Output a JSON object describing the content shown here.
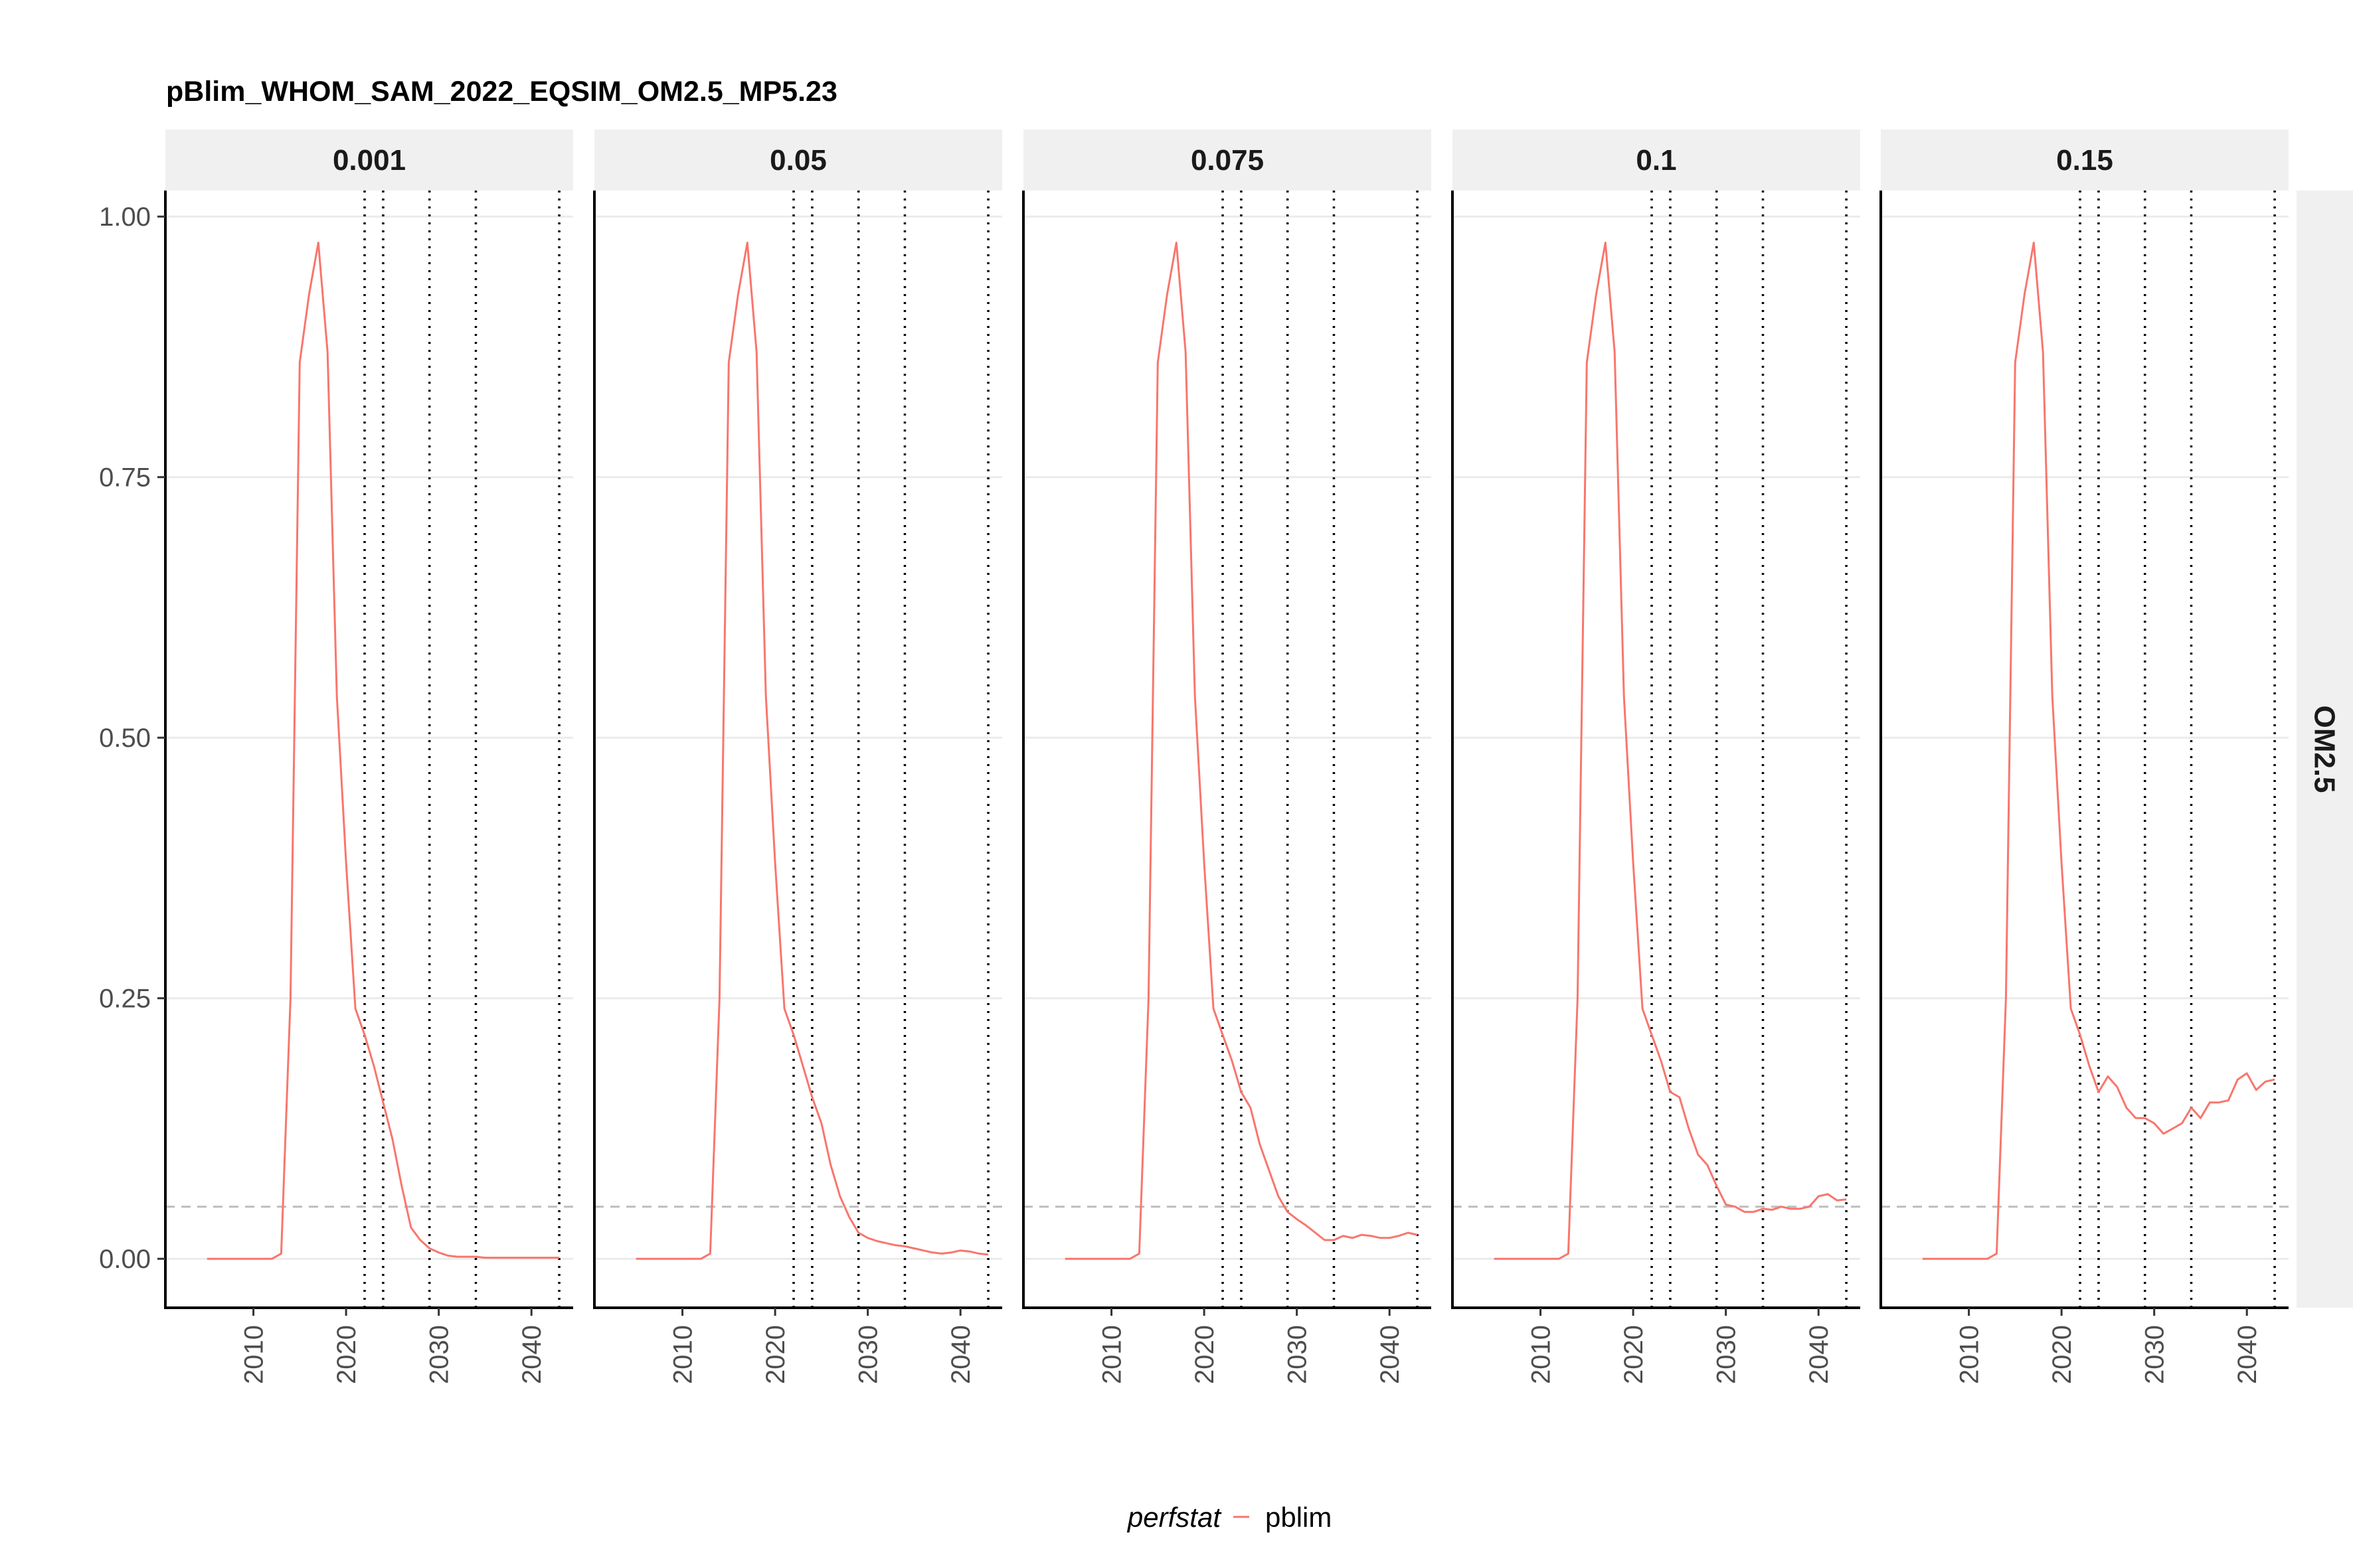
{
  "chart_data": {
    "type": "line",
    "title": "pBlim_WHOM_SAM_2022_EQSIM_OM2.5_MP5.23",
    "xlabel": "",
    "ylabel": "",
    "x": [
      2005,
      2006,
      2007,
      2008,
      2009,
      2010,
      2011,
      2012,
      2013,
      2014,
      2015,
      2016,
      2017,
      2018,
      2019,
      2020,
      2021,
      2022,
      2023,
      2024,
      2025,
      2026,
      2027,
      2028,
      2029,
      2030,
      2031,
      2032,
      2033,
      2034,
      2035,
      2036,
      2037,
      2038,
      2039,
      2040,
      2041,
      2042,
      2043
    ],
    "xlim": [
      2000.5,
      2044.5
    ],
    "ylim": [
      -0.047,
      1.025
    ],
    "x_ticks": [
      2010,
      2020,
      2030,
      2040
    ],
    "x_tick_labels": [
      "2010",
      "2020",
      "2030",
      "2040"
    ],
    "y_ticks": [
      0,
      0.25,
      0.5,
      0.75,
      1.0
    ],
    "y_tick_labels": [
      "0.00",
      "0.25",
      "0.50",
      "0.75",
      "1.00"
    ],
    "x_scroll_angle_note": "",
    "row_strip": "OM2.5",
    "reference_line_y": 0.05,
    "vertical_lines_x": [
      2022,
      2024,
      2029,
      2034,
      2043
    ],
    "grid": true,
    "legend": {
      "title": "perfstat",
      "position": "bottom",
      "entries": [
        "pblim"
      ]
    },
    "colors": {
      "pblim": "#F8766D",
      "reference": "#bdbdbd",
      "vertical": "#000000",
      "strip_bg": "#f0f0f0",
      "grid": "#ebebeb"
    },
    "panels": [
      {
        "label": "0.001",
        "series": [
          {
            "name": "pblim",
            "values": [
              0,
              0,
              0,
              0,
              0,
              0,
              0,
              0,
              0.005,
              0.25,
              0.86,
              0.925,
              0.975,
              0.87,
              0.54,
              0.38,
              0.24,
              0.215,
              0.185,
              0.15,
              0.115,
              0.07,
              0.03,
              0.018,
              0.01,
              0.006,
              0.003,
              0.002,
              0.002,
              0.002,
              0.001,
              0.001,
              0.001,
              0.001,
              0.001,
              0.001,
              0.001,
              0.001,
              0.001
            ]
          }
        ]
      },
      {
        "label": "0.05",
        "series": [
          {
            "name": "pblim",
            "values": [
              0,
              0,
              0,
              0,
              0,
              0,
              0,
              0,
              0.005,
              0.25,
              0.86,
              0.925,
              0.975,
              0.87,
              0.54,
              0.38,
              0.24,
              0.215,
              0.185,
              0.155,
              0.13,
              0.09,
              0.06,
              0.04,
              0.025,
              0.02,
              0.017,
              0.015,
              0.013,
              0.012,
              0.01,
              0.008,
              0.006,
              0.005,
              0.006,
              0.008,
              0.007,
              0.005,
              0.004
            ]
          }
        ]
      },
      {
        "label": "0.075",
        "series": [
          {
            "name": "pblim",
            "values": [
              0,
              0,
              0,
              0,
              0,
              0,
              0,
              0,
              0.005,
              0.25,
              0.86,
              0.925,
              0.975,
              0.87,
              0.54,
              0.38,
              0.24,
              0.215,
              0.19,
              0.16,
              0.145,
              0.11,
              0.085,
              0.06,
              0.045,
              0.038,
              0.032,
              0.025,
              0.018,
              0.018,
              0.022,
              0.02,
              0.023,
              0.022,
              0.02,
              0.02,
              0.022,
              0.025,
              0.023
            ]
          }
        ]
      },
      {
        "label": "0.1",
        "series": [
          {
            "name": "pblim",
            "values": [
              0,
              0,
              0,
              0,
              0,
              0,
              0,
              0,
              0.005,
              0.25,
              0.86,
              0.925,
              0.975,
              0.87,
              0.54,
              0.38,
              0.24,
              0.215,
              0.19,
              0.16,
              0.155,
              0.125,
              0.1,
              0.09,
              0.07,
              0.052,
              0.05,
              0.045,
              0.045,
              0.048,
              0.047,
              0.05,
              0.048,
              0.048,
              0.05,
              0.06,
              0.062,
              0.056,
              0.057
            ]
          }
        ]
      },
      {
        "label": "0.15",
        "series": [
          {
            "name": "pblim",
            "values": [
              0,
              0,
              0,
              0,
              0,
              0,
              0,
              0,
              0.005,
              0.25,
              0.86,
              0.925,
              0.975,
              0.87,
              0.54,
              0.38,
              0.24,
              0.215,
              0.185,
              0.16,
              0.175,
              0.165,
              0.145,
              0.135,
              0.135,
              0.13,
              0.12,
              0.125,
              0.13,
              0.145,
              0.135,
              0.15,
              0.15,
              0.152,
              0.172,
              0.178,
              0.162,
              0.17,
              0.172
            ]
          }
        ]
      }
    ]
  }
}
